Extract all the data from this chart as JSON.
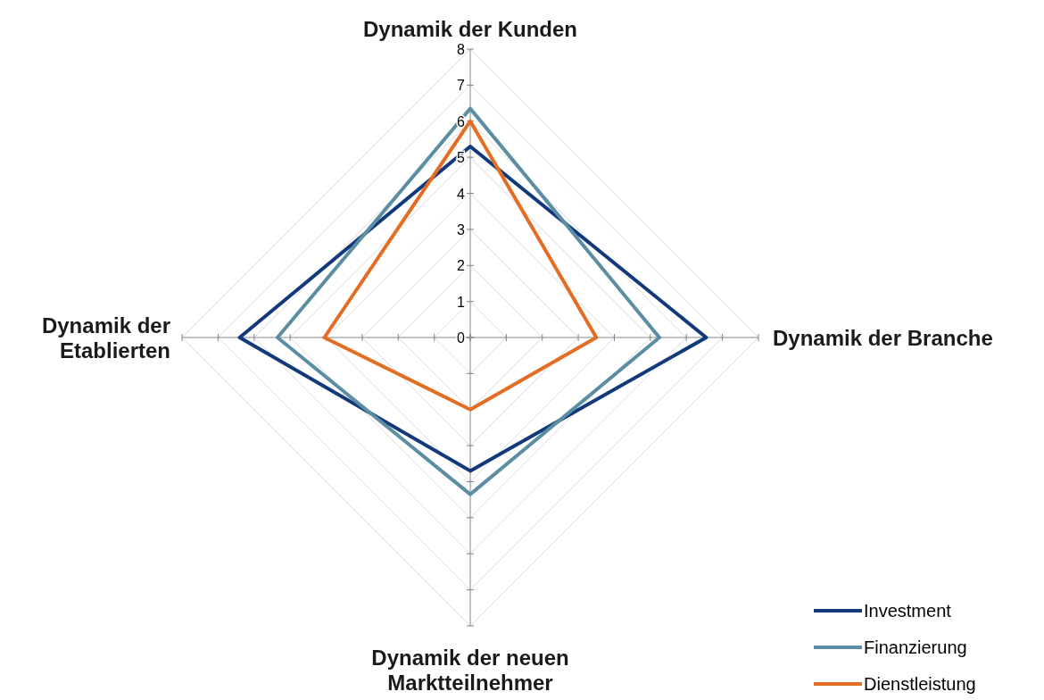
{
  "chart_data": {
    "type": "radar",
    "categories": [
      "Dynamik der Kunden",
      "Dynamik der Branche",
      "Dynamik der neuen Marktteilnehmer",
      "Dynamik der Etablierten"
    ],
    "series": [
      {
        "name": "Investment",
        "color": "#123a7a",
        "values": [
          5.3,
          6.55,
          3.7,
          6.4
        ]
      },
      {
        "name": "Finanzierung",
        "color": "#5b8ea2",
        "values": [
          6.35,
          5.25,
          4.35,
          5.35
        ]
      },
      {
        "name": "Dienstleistung",
        "color": "#e46c23",
        "values": [
          6,
          3.5,
          2,
          4.05
        ]
      }
    ],
    "ylim": [
      0,
      8
    ],
    "yticks": [
      0,
      1,
      2,
      3,
      4,
      5,
      6,
      7,
      8
    ],
    "grid": true,
    "legend": "bottom right",
    "marker": "none",
    "line_style": "solid"
  }
}
